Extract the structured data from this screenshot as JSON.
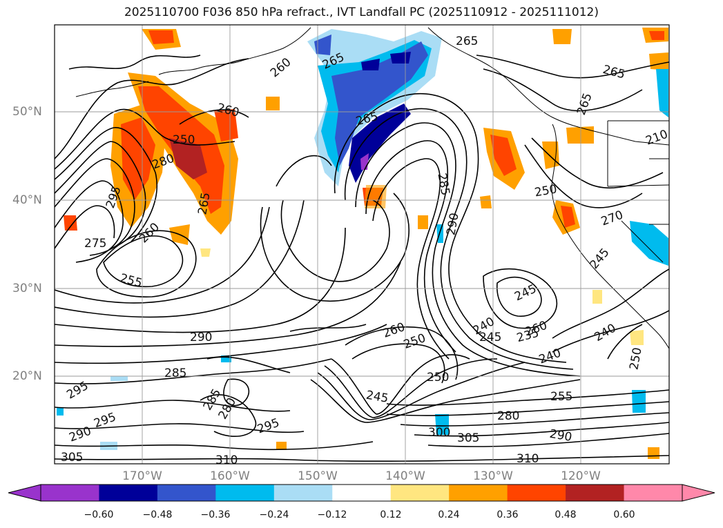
{
  "title": "2025110700 F036 850 hPa refract., IVT Landfall PC (2025110912 - 2025111012)",
  "map": {
    "lat_labels": [
      "50°N",
      "40°N",
      "30°N",
      "20°N"
    ],
    "lon_labels": [
      "170°W",
      "160°W",
      "150°W",
      "140°W",
      "130°W",
      "120°W"
    ],
    "contour_labels": [
      "265",
      "260",
      "265",
      "265",
      "260",
      "250",
      "265",
      "295",
      "290",
      "260",
      "275",
      "255",
      "250",
      "285",
      "290",
      "245",
      "240",
      "245",
      "260",
      "235",
      "240",
      "240",
      "250",
      "290",
      "295",
      "285",
      "295",
      "285",
      "280",
      "295",
      "305",
      "305",
      "300",
      "310",
      "310",
      "280",
      "255",
      "290",
      "250",
      "245",
      "265",
      "260",
      "250",
      "265",
      "270",
      "245",
      "210",
      "280"
    ]
  },
  "colorbar": {
    "colors": [
      "#9933cc",
      "#000099",
      "#3355cc",
      "#00bbee",
      "#aaddf5",
      "#ffffff",
      "#ffe680",
      "#ffa000",
      "#ff4400",
      "#b22222",
      "#ff88aa"
    ],
    "tick_labels": [
      "−0.60",
      "−0.48",
      "−0.36",
      "−0.24",
      "−0.12",
      "0.12",
      "0.24",
      "0.36",
      "0.48",
      "0.60"
    ]
  },
  "colors": {
    "coast": "#000000",
    "grid": "#9a9a9a",
    "label": "#808080"
  }
}
